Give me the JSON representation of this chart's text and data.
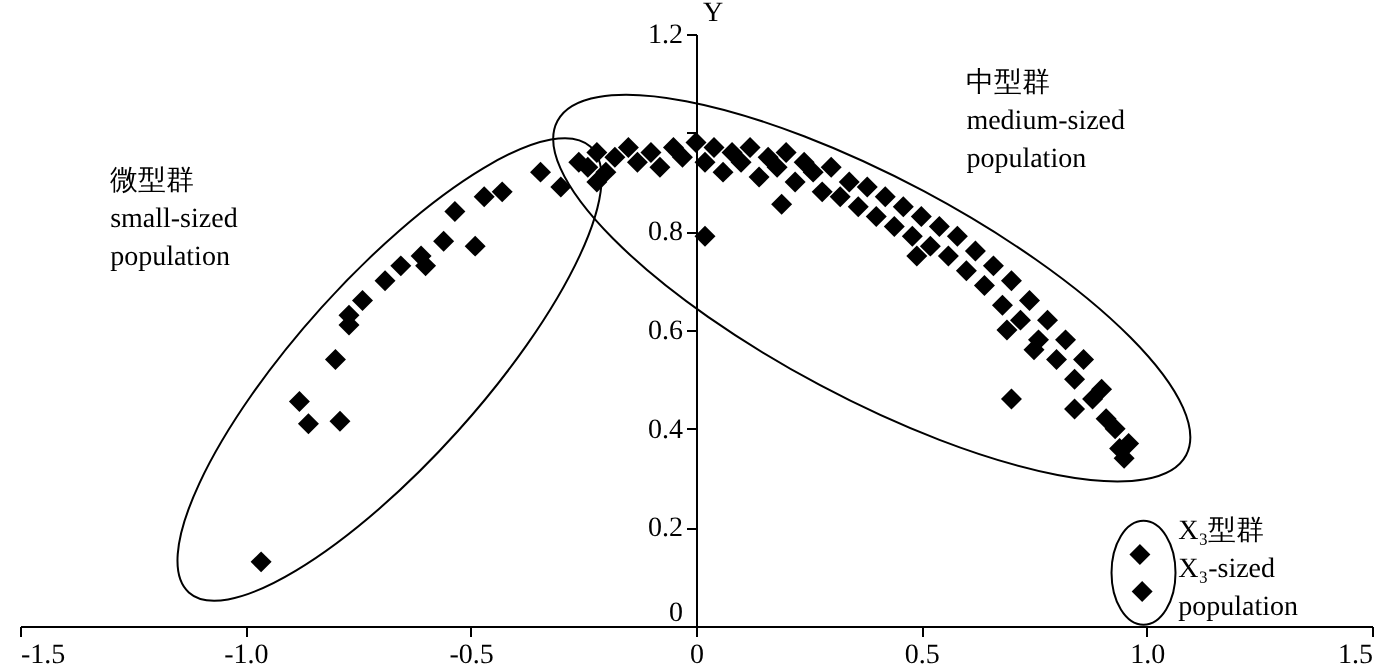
{
  "chart_data": {
    "type": "scatter",
    "ylabel": "Y",
    "x": [
      -0.965,
      -0.88,
      -0.86,
      -0.79,
      -0.8,
      -0.77,
      -0.77,
      -0.74,
      -0.69,
      -0.655,
      -0.61,
      -0.6,
      -0.56,
      -0.535,
      -0.49,
      -0.47,
      -0.43,
      -0.345,
      -0.3,
      -0.26,
      -0.24,
      -0.22,
      -0.2,
      -0.18,
      -0.15,
      -0.13,
      -0.1,
      -0.08,
      -0.05,
      -0.03,
      0,
      0.02,
      0.04,
      0.06,
      0.08,
      0.1,
      0.12,
      0.14,
      0.16,
      0.18,
      0.2,
      0.22,
      0.24,
      0.26,
      0.28,
      0.3,
      0.32,
      0.34,
      0.36,
      0.38,
      0.4,
      0.42,
      0.44,
      0.46,
      0.48,
      0.5,
      0.52,
      0.54,
      0.56,
      0.58,
      0.6,
      0.62,
      0.64,
      0.66,
      0.68,
      0.7,
      0.72,
      0.74,
      0.76,
      0.78,
      0.8,
      0.82,
      0.84,
      0.86,
      0.88,
      0.9,
      0.91,
      0.93,
      0.94,
      0.95,
      0.96,
      0.02,
      0.19,
      0.49,
      0.7,
      0.69,
      0.84,
      0.75,
      -0.22,
      0.985,
      0.99
    ],
    "values": [
      0.13,
      0.455,
      0.41,
      0.415,
      0.54,
      0.61,
      0.63,
      0.66,
      0.7,
      0.73,
      0.75,
      0.73,
      0.78,
      0.84,
      0.77,
      0.87,
      0.88,
      0.92,
      0.89,
      0.94,
      0.93,
      0.96,
      0.92,
      0.95,
      0.97,
      0.94,
      0.96,
      0.93,
      0.97,
      0.95,
      0.98,
      0.94,
      0.97,
      0.92,
      0.96,
      0.94,
      0.97,
      0.91,
      0.95,
      0.93,
      0.96,
      0.9,
      0.94,
      0.92,
      0.88,
      0.93,
      0.87,
      0.9,
      0.85,
      0.89,
      0.83,
      0.87,
      0.81,
      0.85,
      0.79,
      0.83,
      0.77,
      0.81,
      0.75,
      0.79,
      0.72,
      0.76,
      0.69,
      0.73,
      0.65,
      0.7,
      0.62,
      0.66,
      0.58,
      0.62,
      0.54,
      0.58,
      0.5,
      0.54,
      0.46,
      0.48,
      0.42,
      0.4,
      0.36,
      0.34,
      0.37,
      0.79,
      0.855,
      0.75,
      0.46,
      0.6,
      0.44,
      0.56,
      0.9,
      0.145,
      0.07
    ],
    "color": "#000000",
    "marker": "diamond",
    "grid": false,
    "xlim": [
      -1.5,
      1.5
    ],
    "xticks": [
      {
        "value": -1.5,
        "label": "-1.5"
      },
      {
        "value": -1,
        "label": "-1.0"
      },
      {
        "value": -0.5,
        "label": "-0.5"
      },
      0,
      0.5,
      {
        "value": 1,
        "label": "1.0"
      },
      1.5
    ],
    "ylim": [
      0,
      1.2
    ],
    "yticks": [
      0,
      0.2,
      0.4,
      0.6,
      0.8,
      {
        "value": 1,
        "label": null
      },
      1.2
    ],
    "annotations": [
      "微型群\nsmall-sized\npopulation",
      "中型群\nmedium-sized\npopulation",
      "X₃型群\nX₃-sized\npopulation"
    ]
  }
}
